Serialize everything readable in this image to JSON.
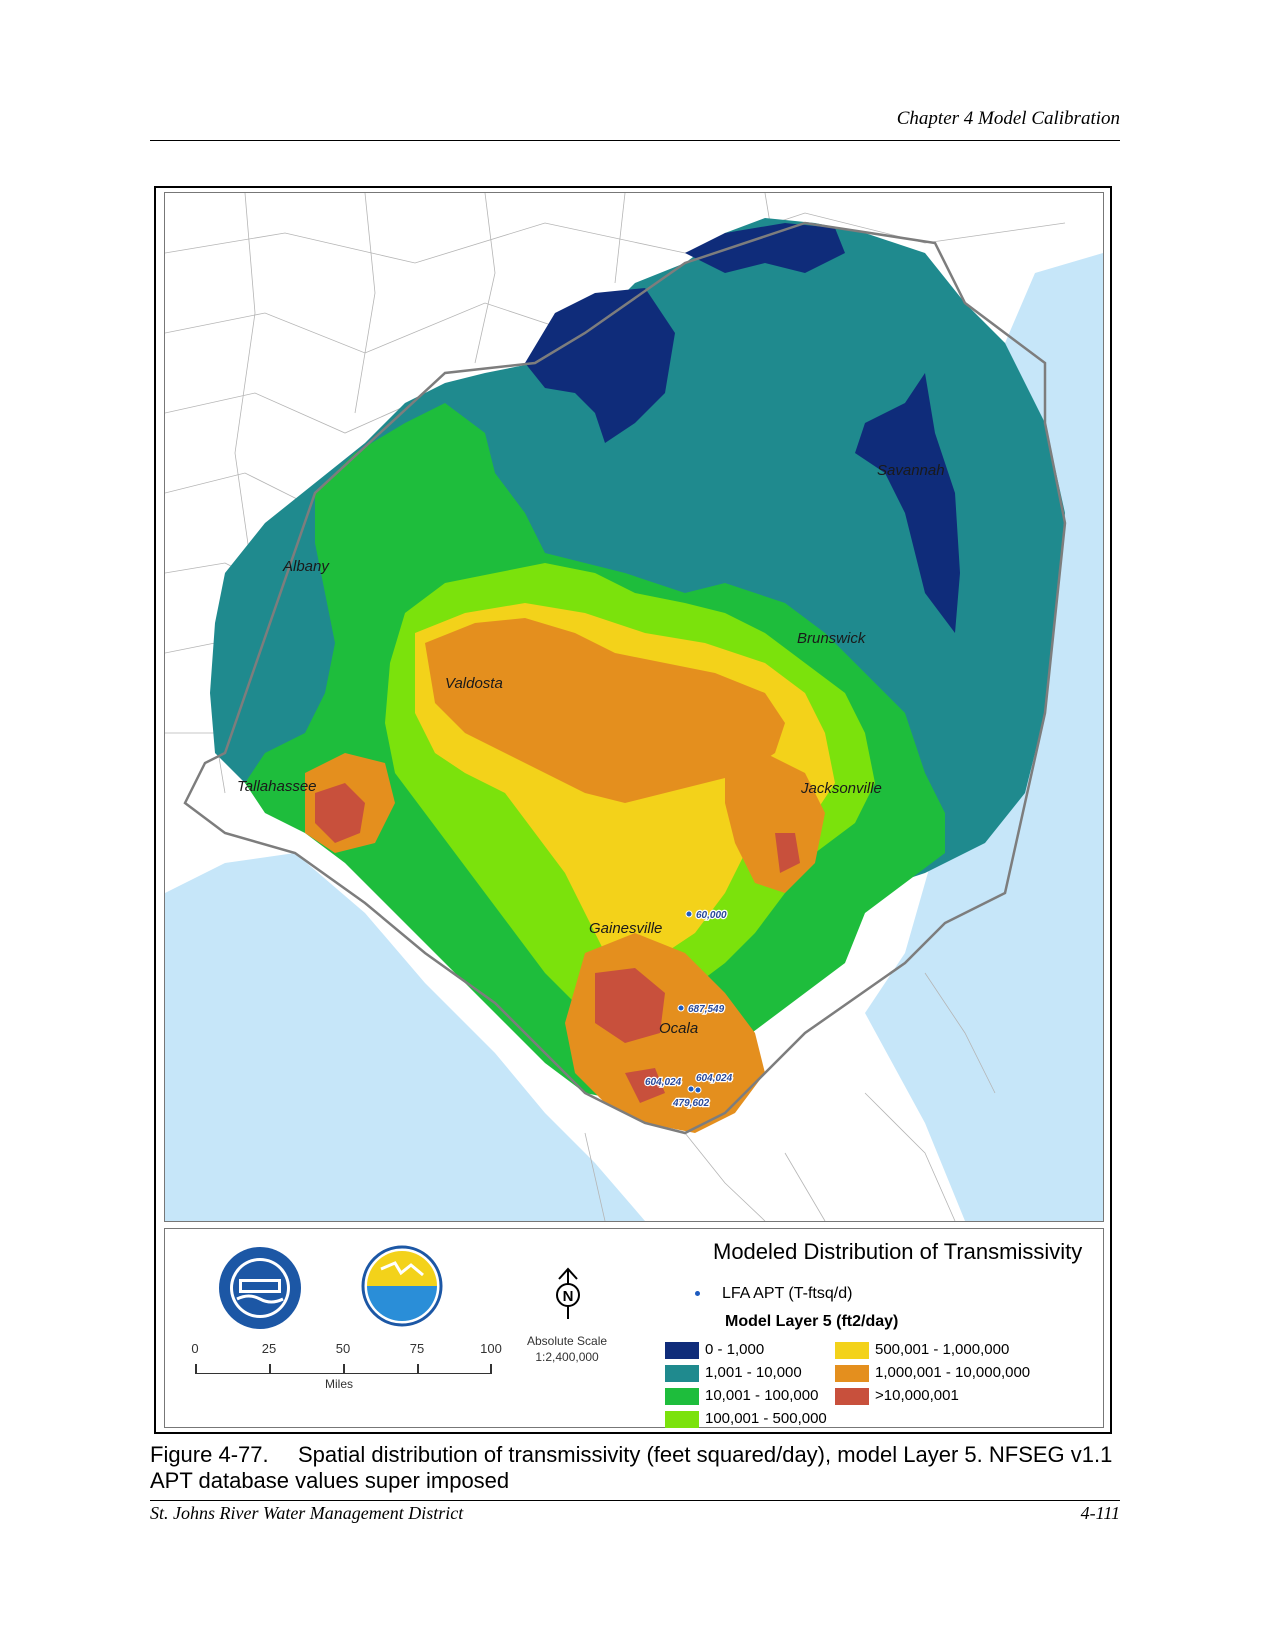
{
  "header": {
    "chapter": "Chapter 4 Model Calibration"
  },
  "map": {
    "colors": {
      "water": "#c6e6f9",
      "land": "#ffffff",
      "class_0_1000": "#0f2c7a",
      "class_1001_10000": "#1f8a8e",
      "class_10001_100000": "#1ebd3c",
      "class_100001_500000": "#7be20c",
      "class_500001_1000000": "#f3d21a",
      "class_1000001_10000000": "#e48f1e",
      "class_gt_10000001": "#c8503c",
      "boundary": "#7d7d7d"
    },
    "cities": [
      {
        "name": "Albany"
      },
      {
        "name": "Savannah"
      },
      {
        "name": "Brunswick"
      },
      {
        "name": "Valdosta"
      },
      {
        "name": "Tallahassee"
      },
      {
        "name": "Jacksonville"
      },
      {
        "name": "Gainesville"
      },
      {
        "name": "Ocala"
      }
    ],
    "apt_points": [
      {
        "label": "60,000"
      },
      {
        "label": "687,549"
      },
      {
        "label": "604,024"
      },
      {
        "label": "604,024"
      },
      {
        "label": "479,602"
      }
    ]
  },
  "legend": {
    "title": "Modeled Distribution of Transmissivity",
    "apt_label": "LFA APT (T-ftsq/d)",
    "subtitle": "Model Layer 5 (ft2/day)",
    "classes": [
      {
        "label": "0 - 1,000",
        "color": "#0f2c7a"
      },
      {
        "label": "1,001 - 10,000",
        "color": "#1f8a8e"
      },
      {
        "label": "10,001 - 100,000",
        "color": "#1ebd3c"
      },
      {
        "label": "100,001 - 500,000",
        "color": "#7be20c"
      },
      {
        "label": "500,001 - 1,000,000",
        "color": "#f3d21a"
      },
      {
        "label": "1,000,001 - 10,000,000",
        "color": "#e48f1e"
      },
      {
        "label": ">10,000,001",
        "color": "#c8503c"
      }
    ],
    "scale": {
      "ticks": [
        "0",
        "25",
        "50",
        "75",
        "100"
      ],
      "unit": "Miles"
    },
    "abs_scale_label": "Absolute Scale",
    "abs_scale_value": "1:2,400,000",
    "north_letter": "N"
  },
  "caption": {
    "figure": "Figure 4-77.",
    "text": "Spatial distribution of transmissivity (feet squared/day), model Layer 5.  NFSEG v1.1 APT database values super imposed"
  },
  "footer": {
    "left": "St. Johns River Water Management District",
    "right": "4-111"
  }
}
